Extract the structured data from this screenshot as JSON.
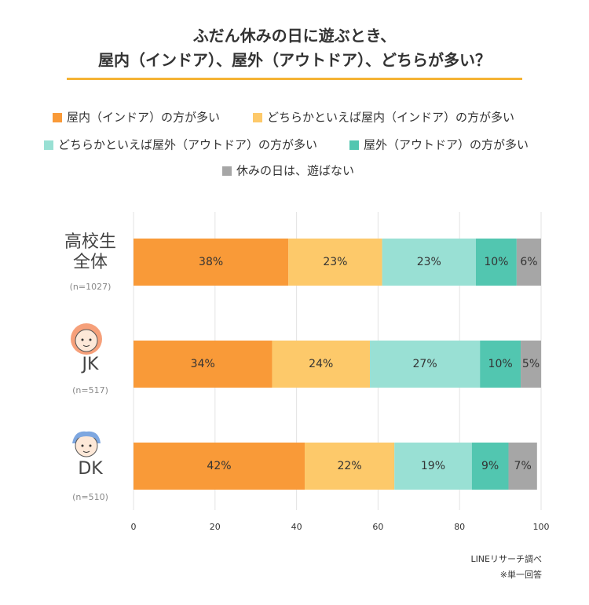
{
  "chart_data": {
    "type": "stacked_barh",
    "title": [
      "ふだん休みの日に遊ぶとき、",
      "屋内（インドア）、屋外（アウトドア）、どちらが多い？"
    ],
    "categories": [
      "高校生全体",
      "JK",
      "DK"
    ],
    "sample_sizes": [
      "(n=1027)",
      "(n=517)",
      "(n=510)"
    ],
    "series": [
      {
        "name": "屋内（インドア）の方が多い",
        "color": "#f99a38",
        "values": [
          38,
          34,
          42
        ],
        "value_labels": [
          "38%",
          "34%",
          "42%"
        ]
      },
      {
        "name": "どちらかといえば屋内（インドア）の方が多い",
        "color": "#fdc96a",
        "values": [
          23,
          24,
          22
        ],
        "value_labels": [
          "23%",
          "24%",
          "22%"
        ]
      },
      {
        "name": "どちらかといえば屋外（アウトドア）の方が多い",
        "color": "#99e0d4",
        "values": [
          23,
          27,
          19
        ],
        "value_labels": [
          "23%",
          "27%",
          "19%"
        ]
      },
      {
        "name": "屋外（アウトドア）の方が多い",
        "color": "#52c6b0",
        "values": [
          10,
          10,
          9
        ],
        "value_labels": [
          "10%",
          "10%",
          "9%"
        ]
      },
      {
        "name": "休みの日は、遊ばない",
        "color": "#a6a6a6",
        "values": [
          6,
          5,
          7
        ],
        "value_labels": [
          "6%",
          "5%",
          "7%"
        ]
      }
    ],
    "xlim": [
      0,
      100
    ],
    "xticks": [
      0,
      20,
      40,
      60,
      80,
      100
    ],
    "grid": true,
    "source": "LINEリサーチ調べ",
    "note": "※単一回答"
  }
}
